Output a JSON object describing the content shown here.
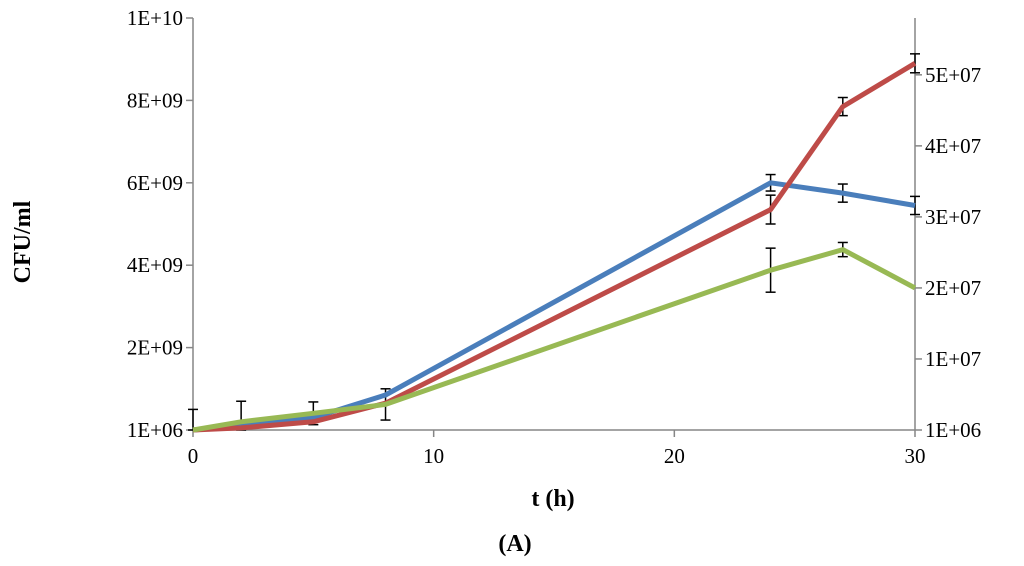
{
  "chart_data": {
    "type": "line",
    "title": "",
    "caption": "(A)",
    "xlabel": "t (h)",
    "ylabel": "CFU/ml",
    "y2label": "",
    "xlim": [
      0,
      30
    ],
    "ylim": [
      0,
      10000000000
    ],
    "y2lim": [
      0,
      58000000
    ],
    "grid": false,
    "legend": "none",
    "x_ticks": [
      "0",
      "10",
      "20",
      "30"
    ],
    "x_tick_values": [
      0,
      10,
      20,
      30
    ],
    "y_ticks": [
      "1E+06",
      "2E+09",
      "4E+09",
      "6E+09",
      "8E+09",
      "1E+10"
    ],
    "y_tick_values": [
      0,
      2000000000,
      4000000000,
      6000000000,
      8000000000,
      10000000000
    ],
    "y2_ticks": [
      "1E+06",
      "1E+07",
      "2E+07",
      "3E+07",
      "4E+07",
      "5E+07"
    ],
    "y2_tick_values": [
      0,
      10000000,
      20000000,
      30000000,
      40000000,
      50000000
    ],
    "series": [
      {
        "axis": "left",
        "color": "#4a7ebb",
        "x": [
          0,
          2,
          5,
          8,
          24,
          27,
          30
        ],
        "y": [
          0,
          90000000,
          300000000,
          850000000,
          6000000000,
          5750000000,
          5450000000
        ],
        "error": [
          0,
          0,
          0,
          0,
          200000000,
          220000000,
          220000000
        ]
      },
      {
        "axis": "left",
        "color": "#be4b48",
        "x": [
          0,
          2,
          5,
          8,
          24,
          27,
          30
        ],
        "y": [
          0,
          50000000,
          200000000,
          650000000,
          5350000000,
          7850000000,
          8900000000
        ],
        "error": [
          0,
          0,
          0,
          0,
          350000000,
          220000000,
          230000000
        ]
      },
      {
        "axis": "right",
        "color": "#98b954",
        "x": [
          0,
          2,
          5,
          8,
          24,
          27,
          30
        ],
        "y": [
          0,
          1150000,
          2350000,
          3600000,
          22500000,
          25400000,
          20000000
        ],
        "error": [
          2900000,
          2900000,
          1600000,
          2200000,
          3100000,
          1000000,
          0
        ]
      }
    ]
  }
}
